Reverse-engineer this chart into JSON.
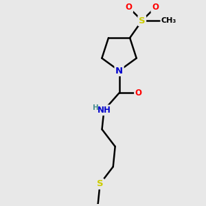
{
  "bg_color": "#e8e8e8",
  "atom_colors": {
    "C": "#000000",
    "N": "#0000cc",
    "O": "#ff0000",
    "S": "#cccc00",
    "H": "#4a9090"
  },
  "bond_color": "#000000",
  "bond_width": 1.8,
  "font_size_atom": 8.5,
  "xlim": [
    0,
    10
  ],
  "ylim": [
    0,
    10
  ]
}
